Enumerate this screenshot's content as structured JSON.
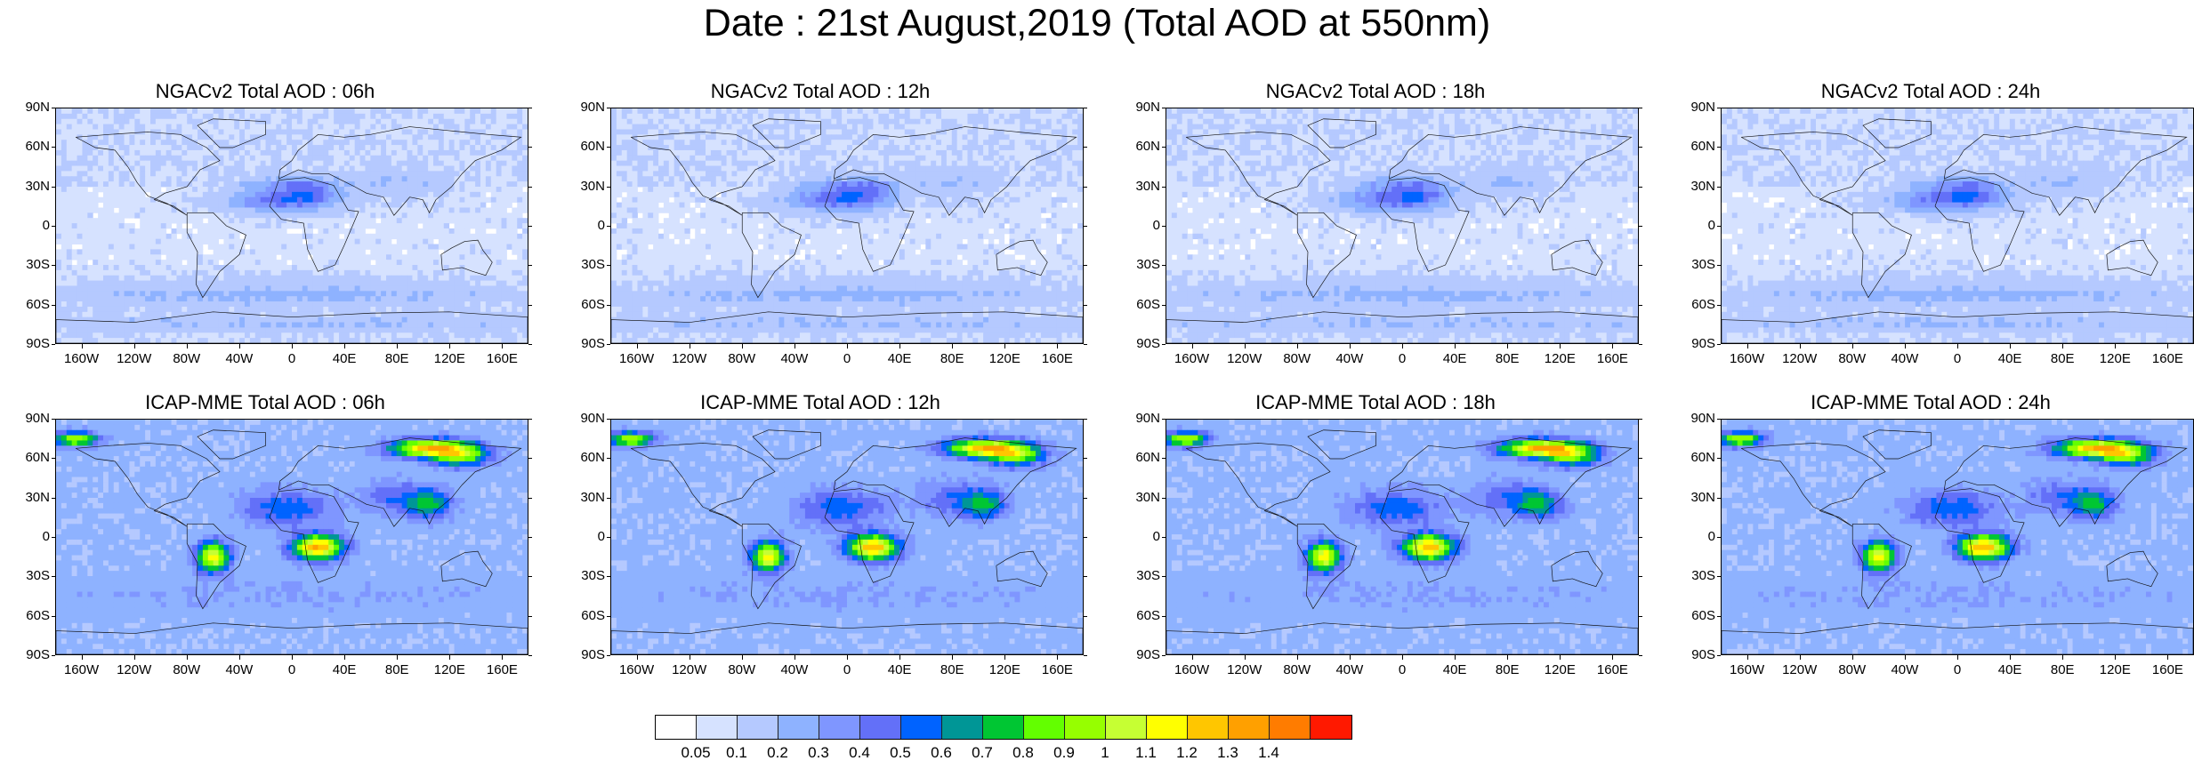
{
  "title": "Date : 21st August,2019 (Total AOD at 550nm)",
  "lat_labels": [
    "90N",
    "60N",
    "30N",
    "0",
    "30S",
    "60S",
    "90S"
  ],
  "lon_labels": [
    "160W",
    "120W",
    "80W",
    "40W",
    "0",
    "40E",
    "80E",
    "120E",
    "160E"
  ],
  "panels": [
    {
      "title": "NGACv2 Total AOD : 06h",
      "model": "NGACv2",
      "hour": "06h"
    },
    {
      "title": "NGACv2 Total AOD : 12h",
      "model": "NGACv2",
      "hour": "12h"
    },
    {
      "title": "NGACv2 Total AOD : 18h",
      "model": "NGACv2",
      "hour": "18h"
    },
    {
      "title": "NGACv2 Total AOD : 24h",
      "model": "NGACv2",
      "hour": "24h"
    },
    {
      "title": "ICAP-MME Total AOD : 06h",
      "model": "ICAP-MME",
      "hour": "06h"
    },
    {
      "title": "ICAP-MME Total AOD : 12h",
      "model": "ICAP-MME",
      "hour": "12h"
    },
    {
      "title": "ICAP-MME Total AOD : 18h",
      "model": "ICAP-MME",
      "hour": "18h"
    },
    {
      "title": "ICAP-MME Total AOD : 24h",
      "model": "ICAP-MME",
      "hour": "24h"
    }
  ],
  "colorbar": {
    "labels": [
      "0.05",
      "0.1",
      "0.2",
      "0.3",
      "0.4",
      "0.5",
      "0.6",
      "0.7",
      "0.8",
      "0.9",
      "1",
      "1.1",
      "1.2",
      "1.3",
      "1.4"
    ],
    "colors": [
      "#ffffff",
      "#d6e2ff",
      "#b5c9ff",
      "#8eb2ff",
      "#7f96ff",
      "#6370f8",
      "#0063ff",
      "#009696",
      "#00c633",
      "#63ff00",
      "#96ff00",
      "#c6ff33",
      "#ffff00",
      "#ffc600",
      "#ffa000",
      "#ff7c00",
      "#ff1900"
    ]
  }
}
